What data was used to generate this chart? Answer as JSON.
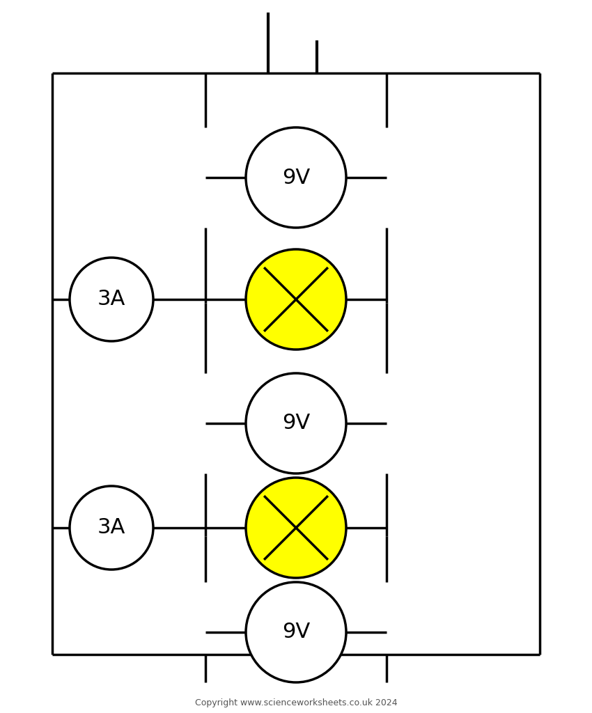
{
  "bg_color": "#ffffff",
  "line_color": "#000000",
  "line_width": 2.5,
  "bulb_fill": "#ffff00",
  "meter_fill": "#ffffff",
  "font_size_meter": 22,
  "font_size_copyright": 9,
  "copyright_text": "Copyright www.scienceworksheets.co.uk 2024",
  "ammeter_label": "3A",
  "voltmeter_label": "9V",
  "fig_width": 8.5,
  "fig_height": 10.24
}
